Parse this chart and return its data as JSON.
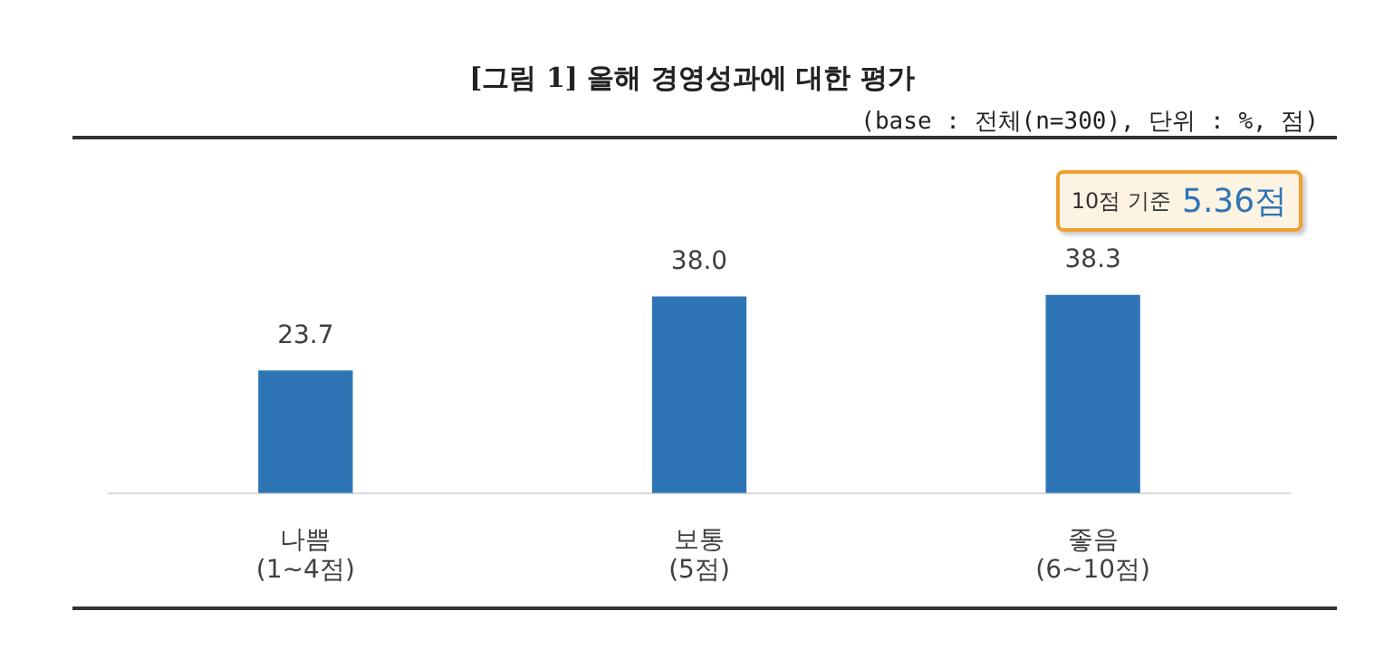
{
  "chart_data": {
    "type": "bar",
    "title": "[그림 1] 올해 경영성과에 대한 평가",
    "subtitle": "(base : 전체(n=300), 단위 : %, 점)",
    "categories": [
      "나쁨\n(1~4점)",
      "보통\n(5점)",
      "좋음\n(6~10점)"
    ],
    "values": [
      23.7,
      38.0,
      38.3
    ],
    "value_labels": [
      "23.7",
      "38.0",
      "38.3"
    ],
    "color": "#2e75b6",
    "annotations": [
      "10점 기준 5.36점"
    ],
    "legend": false,
    "grid": false,
    "tick_labels": "x"
  }
}
